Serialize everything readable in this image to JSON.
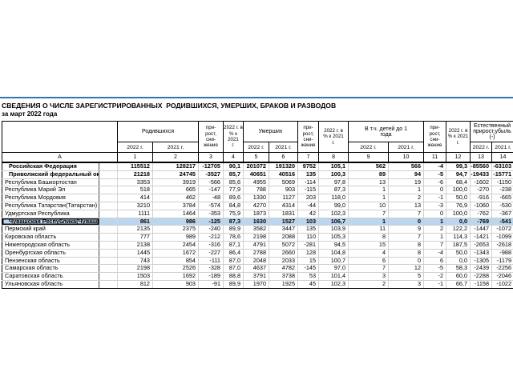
{
  "page": {
    "title": "СВЕДЕНИЯ О ЧИСЛЕ ЗАРЕГИСТРИРОВАННЫХ  РОДИВШИХСЯ, УМЕРШИХ, БРАКОВ И РАЗВОДОВ",
    "subtitle": "за март 2022 года",
    "colors": {
      "accent_rule": "#2e75b6",
      "highlight_row": "#bcd6ee",
      "table_border": "#000000",
      "grid_line": "#cfcfcf",
      "text": "#000000"
    }
  },
  "table": {
    "header": {
      "corner": "",
      "groups": {
        "births": "Родившихся",
        "deaths": "Умерших",
        "infants": "В т.ч. детей до 1\nгода",
        "natural": "Естественный\nприрост,убыль (-)"
      },
      "growth": "при-\nрост,\nсни-\nжение",
      "pct": "2022 г. в\n% к 2021\nг.",
      "year_2022": "2022 г.",
      "year_2021": "2021 г.",
      "index": [
        "А",
        "1",
        "2",
        "3",
        "4",
        "5",
        "6",
        "7",
        "8",
        "9",
        "10",
        "11",
        "12",
        "13",
        "14"
      ]
    },
    "rows": [
      {
        "name": "Российская Федерация",
        "bold": true,
        "highlight": false,
        "values": [
          "115512",
          "128217",
          "-12705",
          "90,1",
          "201072",
          "191320",
          "9752",
          "105,1",
          "562",
          "566",
          "-4",
          "99,3",
          "-85560",
          "-63103"
        ]
      },
      {
        "name": "Приволжский федеральный округ",
        "bold": true,
        "highlight": false,
        "values": [
          "21218",
          "24745",
          "-3527",
          "85,7",
          "40651",
          "40516",
          "135",
          "100,3",
          "89",
          "94",
          "-5",
          "94,7",
          "-19433",
          "-15771"
        ]
      },
      {
        "name": "Республика Башкортостан",
        "bold": false,
        "highlight": false,
        "values": [
          "3353",
          "3919",
          "-566",
          "85,6",
          "4955",
          "5069",
          "-114",
          "97,8",
          "13",
          "19",
          "-6",
          "68,4",
          "-1602",
          "-1150"
        ]
      },
      {
        "name": "Республика Марий Эл",
        "bold": false,
        "highlight": false,
        "values": [
          "518",
          "665",
          "-147",
          "77,9",
          "788",
          "903",
          "-115",
          "87,3",
          "1",
          "1",
          "0",
          "100,0",
          "-270",
          "-238"
        ]
      },
      {
        "name": "Республика Мордовия",
        "bold": false,
        "highlight": false,
        "values": [
          "414",
          "462",
          "-48",
          "89,6",
          "1330",
          "1127",
          "203",
          "118,0",
          "1",
          "2",
          "-1",
          "50,0",
          "-916",
          "-665"
        ]
      },
      {
        "name": "Республика Татарстан(Татарстан)",
        "bold": false,
        "highlight": false,
        "values": [
          "3210",
          "3784",
          "-574",
          "84,8",
          "4270",
          "4314",
          "-44",
          "99,0",
          "10",
          "13",
          "-3",
          "76,9",
          "-1060",
          "-530"
        ]
      },
      {
        "name": "Удмуртская Республика",
        "bold": false,
        "highlight": false,
        "values": [
          "1111",
          "1464",
          "-353",
          "75,9",
          "1873",
          "1831",
          "42",
          "102,3",
          "7",
          "7",
          "0",
          "100,0",
          "-762",
          "-367"
        ]
      },
      {
        "name": "Чувашская Республика(Чувашия)",
        "bold": true,
        "highlight": true,
        "values": [
          "861",
          "986",
          "-125",
          "87,3",
          "1630",
          "1527",
          "103",
          "106,7",
          "1",
          "0",
          "1",
          "0,0",
          "-769",
          "-541"
        ]
      },
      {
        "name": "Пермский край",
        "bold": false,
        "highlight": false,
        "values": [
          "2135",
          "2375",
          "-240",
          "89,9",
          "3582",
          "3447",
          "135",
          "103,9",
          "11",
          "9",
          "2",
          "122,2",
          "-1447",
          "-1072"
        ]
      },
      {
        "name": "Кировская область",
        "bold": false,
        "highlight": false,
        "values": [
          "777",
          "989",
          "-212",
          "78,6",
          "2198",
          "2088",
          "110",
          "105,3",
          "8",
          "7",
          "1",
          "114,3",
          "-1421",
          "-1099"
        ]
      },
      {
        "name": "Нижегородская область",
        "bold": false,
        "highlight": false,
        "values": [
          "2138",
          "2454",
          "-316",
          "87,1",
          "4791",
          "5072",
          "-281",
          "94,5",
          "15",
          "8",
          "7",
          "187,5",
          "-2653",
          "-2618"
        ]
      },
      {
        "name": "Оренбургская область",
        "bold": false,
        "highlight": false,
        "values": [
          "1445",
          "1672",
          "-227",
          "86,4",
          "2788",
          "2660",
          "128",
          "104,8",
          "4",
          "8",
          "-4",
          "50,0",
          "-1343",
          "-988"
        ]
      },
      {
        "name": "Пензенская область",
        "bold": false,
        "highlight": false,
        "values": [
          "743",
          "854",
          "-111",
          "87,0",
          "2048",
          "2033",
          "15",
          "100,7",
          "6",
          "0",
          "6",
          "0,0",
          "-1305",
          "-1179"
        ]
      },
      {
        "name": "Самарская область",
        "bold": false,
        "highlight": false,
        "values": [
          "2198",
          "2526",
          "-328",
          "87,0",
          "4637",
          "4782",
          "-145",
          "97,0",
          "7",
          "12",
          "-5",
          "58,3",
          "-2439",
          "-2256"
        ]
      },
      {
        "name": "Саратовская область",
        "bold": false,
        "highlight": false,
        "values": [
          "1503",
          "1692",
          "-189",
          "88,8",
          "3791",
          "3738",
          "53",
          "101,4",
          "3",
          "5",
          "-2",
          "60,0",
          "-2288",
          "-2046"
        ]
      },
      {
        "name": "Ульяновская область",
        "bold": false,
        "highlight": false,
        "values": [
          "812",
          "903",
          "-91",
          "89,9",
          "1970",
          "1925",
          "45",
          "102,3",
          "2",
          "3",
          "-1",
          "66,7",
          "-1158",
          "-1022"
        ]
      }
    ]
  }
}
